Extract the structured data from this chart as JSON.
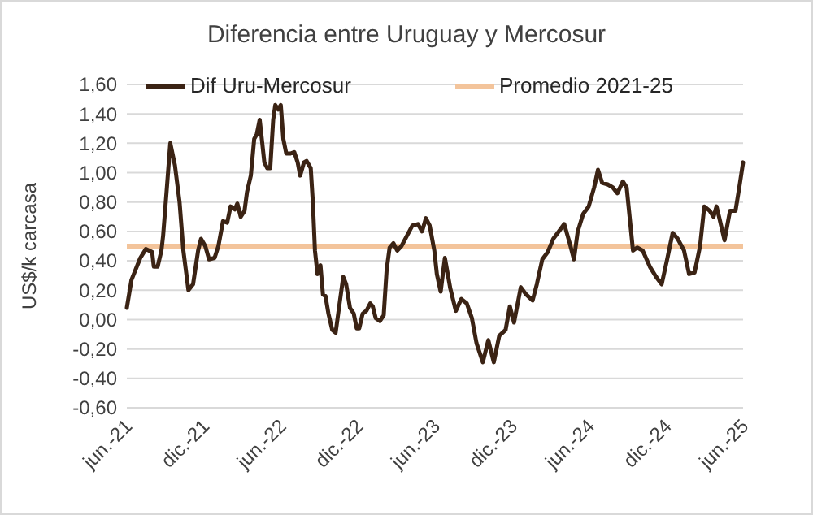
{
  "chart_data": {
    "type": "line",
    "title": "Diferencia entre Uruguay y Mercosur",
    "ylabel": "US$/k carcasa",
    "xlim": [
      "2021-06-01",
      "2025-06-01"
    ],
    "ylim": [
      -0.6,
      1.6
    ],
    "xticks": [
      {
        "value": "2021-06-01",
        "label": "jun.-21"
      },
      {
        "value": "2021-12-01",
        "label": "dic.-21"
      },
      {
        "value": "2022-06-01",
        "label": "jun.-22"
      },
      {
        "value": "2022-12-01",
        "label": "dic.-22"
      },
      {
        "value": "2023-06-01",
        "label": "jun.-23"
      },
      {
        "value": "2023-12-01",
        "label": "dic.-23"
      },
      {
        "value": "2024-06-01",
        "label": "jun.-24"
      },
      {
        "value": "2024-12-01",
        "label": "dic.-24"
      },
      {
        "value": "2025-06-01",
        "label": "jun.-25"
      }
    ],
    "yticks": [
      {
        "value": -0.6,
        "label": "-0,60"
      },
      {
        "value": -0.4,
        "label": "-0,40"
      },
      {
        "value": -0.2,
        "label": "-0,20"
      },
      {
        "value": 0,
        "label": "0,00"
      },
      {
        "value": 0.2,
        "label": "0,20"
      },
      {
        "value": 0.4,
        "label": "0,40"
      },
      {
        "value": 0.6,
        "label": "0,60"
      },
      {
        "value": 0.8,
        "label": "0,80"
      },
      {
        "value": 1.0,
        "label": "1,00"
      },
      {
        "value": 1.2,
        "label": "1,20"
      },
      {
        "value": 1.4,
        "label": "1,40"
      },
      {
        "value": 1.6,
        "label": "1,60"
      }
    ],
    "grid": "y",
    "legend": "top",
    "marker": "none",
    "line_style": "solid",
    "ref_lines": [
      {
        "axis": "y",
        "value": 0.5,
        "label": "Promedio 2021-25",
        "color": "#f3c49b"
      }
    ],
    "series": [
      {
        "name": "Dif Uru-Mercosur",
        "color": "#3b2314",
        "x": [
          "2021-06-01",
          "2021-06-12",
          "2021-07-03",
          "2021-07-16",
          "2021-07-31",
          "2021-08-04",
          "2021-08-13",
          "2021-08-22",
          "2021-08-26",
          "2021-09-04",
          "2021-09-12",
          "2021-09-23",
          "2021-10-04",
          "2021-10-13",
          "2021-10-25",
          "2021-11-05",
          "2021-11-17",
          "2021-11-24",
          "2021-12-04",
          "2021-12-13",
          "2021-12-26",
          "2022-01-04",
          "2022-01-15",
          "2022-01-25",
          "2022-02-02",
          "2022-02-12",
          "2022-02-18",
          "2022-02-26",
          "2022-03-07",
          "2022-03-13",
          "2022-03-22",
          "2022-03-30",
          "2022-04-05",
          "2022-04-12",
          "2022-04-17",
          "2022-04-23",
          "2022-04-30",
          "2022-05-07",
          "2022-05-14",
          "2022-05-19",
          "2022-05-26",
          "2022-06-01",
          "2022-06-07",
          "2022-06-14",
          "2022-06-24",
          "2022-07-03",
          "2022-07-11",
          "2022-07-17",
          "2022-07-26",
          "2022-08-01",
          "2022-08-11",
          "2022-08-16",
          "2022-08-21",
          "2022-08-27",
          "2022-09-03",
          "2022-09-09",
          "2022-09-15",
          "2022-09-22",
          "2022-10-01",
          "2022-10-09",
          "2022-10-17",
          "2022-10-27",
          "2022-11-03",
          "2022-11-12",
          "2022-11-21",
          "2022-11-28",
          "2022-12-04",
          "2022-12-12",
          "2022-12-21",
          "2022-12-30",
          "2023-01-05",
          "2023-01-12",
          "2023-01-22",
          "2023-01-31",
          "2023-02-07",
          "2023-02-14",
          "2023-02-23",
          "2023-03-04",
          "2023-03-14",
          "2023-03-27",
          "2023-04-09",
          "2023-04-22",
          "2023-05-02",
          "2023-05-11",
          "2023-05-20",
          "2023-05-31",
          "2023-06-06",
          "2023-06-15",
          "2023-06-25",
          "2023-07-08",
          "2023-07-21",
          "2023-08-03",
          "2023-08-16",
          "2023-08-28",
          "2023-09-08",
          "2023-09-23",
          "2023-10-06",
          "2023-10-19",
          "2023-11-01",
          "2023-11-16",
          "2023-11-26",
          "2023-12-06",
          "2023-12-22",
          "2024-01-04",
          "2024-01-19",
          "2024-01-29",
          "2024-02-11",
          "2024-02-24",
          "2024-03-08",
          "2024-03-21",
          "2024-04-03",
          "2024-04-16",
          "2024-04-26",
          "2024-05-05",
          "2024-05-18",
          "2024-05-31",
          "2024-06-13",
          "2024-06-22",
          "2024-07-02",
          "2024-07-15",
          "2024-07-27",
          "2024-08-07",
          "2024-08-20",
          "2024-08-29",
          "2024-09-13",
          "2024-09-23",
          "2024-10-06",
          "2024-10-23",
          "2024-11-07",
          "2024-11-20",
          "2024-12-03",
          "2024-12-16",
          "2024-12-28",
          "2025-01-12",
          "2025-01-24",
          "2025-02-06",
          "2025-02-19",
          "2025-03-01",
          "2025-03-14",
          "2025-03-23",
          "2025-03-30",
          "2025-04-05",
          "2025-04-18",
          "2025-05-01",
          "2025-05-14",
          "2025-05-23",
          "2025-06-01"
        ],
        "values": [
          0.08,
          0.27,
          0.42,
          0.48,
          0.46,
          0.36,
          0.36,
          0.47,
          0.57,
          0.9,
          1.2,
          1.05,
          0.8,
          0.47,
          0.2,
          0.24,
          0.47,
          0.55,
          0.5,
          0.41,
          0.42,
          0.5,
          0.67,
          0.66,
          0.77,
          0.75,
          0.79,
          0.7,
          0.74,
          0.87,
          0.98,
          1.23,
          1.26,
          1.36,
          1.23,
          1.07,
          1.03,
          1.03,
          1.36,
          1.46,
          1.43,
          1.46,
          1.23,
          1.13,
          1.13,
          1.14,
          1.07,
          0.98,
          1.07,
          1.08,
          1.03,
          0.8,
          0.47,
          0.31,
          0.37,
          0.17,
          0.16,
          0.04,
          -0.07,
          -0.09,
          0.08,
          0.29,
          0.24,
          0.08,
          0.04,
          -0.06,
          -0.06,
          0.04,
          0.06,
          0.11,
          0.09,
          0.01,
          -0.01,
          0.03,
          0.34,
          0.49,
          0.52,
          0.47,
          0.5,
          0.57,
          0.64,
          0.65,
          0.6,
          0.69,
          0.64,
          0.47,
          0.31,
          0.19,
          0.42,
          0.21,
          0.06,
          0.14,
          0.11,
          0.01,
          -0.16,
          -0.29,
          -0.14,
          -0.29,
          -0.11,
          -0.07,
          0.09,
          -0.02,
          0.22,
          0.17,
          0.13,
          0.24,
          0.41,
          0.46,
          0.55,
          0.6,
          0.65,
          0.52,
          0.41,
          0.6,
          0.72,
          0.77,
          0.9,
          1.02,
          0.93,
          0.92,
          0.9,
          0.86,
          0.94,
          0.9,
          0.47,
          0.49,
          0.47,
          0.36,
          0.29,
          0.24,
          0.41,
          0.59,
          0.55,
          0.47,
          0.31,
          0.32,
          0.5,
          0.77,
          0.74,
          0.7,
          0.77,
          0.7,
          0.54,
          0.74,
          0.74,
          0.9,
          1.07
        ]
      }
    ]
  }
}
